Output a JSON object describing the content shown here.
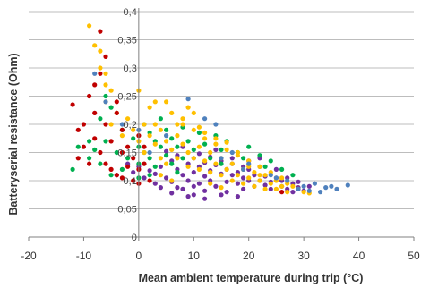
{
  "chart_data": {
    "type": "scatter",
    "xlabel": "Mean ambient temperature during trip (°C)",
    "ylabel": "Batteryserial resistance (Ohm)",
    "xlim": [
      -20,
      50
    ],
    "ylim": [
      0,
      0.4
    ],
    "x_ticks": [
      "-20",
      "-10",
      "0",
      "10",
      "20",
      "30",
      "40",
      "50"
    ],
    "y_ticks": [
      "0",
      "0,05",
      "0,1",
      "0,15",
      "0,2",
      "0,25",
      "0,3",
      "0,35",
      "0,4"
    ],
    "grid": "horizontal",
    "legend": "none",
    "series": [
      {
        "color": "#7030A0",
        "points": [
          [
            2,
            0.118
          ],
          [
            3,
            0.112
          ],
          [
            4,
            0.125
          ],
          [
            5,
            0.105
          ],
          [
            6,
            0.135
          ],
          [
            6,
            0.098
          ],
          [
            7,
            0.12
          ],
          [
            7,
            0.145
          ],
          [
            8,
            0.11
          ],
          [
            8,
            0.085
          ],
          [
            9,
            0.13
          ],
          [
            9,
            0.1
          ],
          [
            10,
            0.115
          ],
          [
            10,
            0.09
          ],
          [
            10,
            0.14
          ],
          [
            11,
            0.125
          ],
          [
            11,
            0.095
          ],
          [
            12,
            0.108
          ],
          [
            12,
            0.132
          ],
          [
            12,
            0.082
          ],
          [
            13,
            0.118
          ],
          [
            13,
            0.1
          ],
          [
            14,
            0.128
          ],
          [
            14,
            0.09
          ],
          [
            15,
            0.112
          ],
          [
            15,
            0.135
          ],
          [
            16,
            0.098
          ],
          [
            16,
            0.12
          ],
          [
            16,
            0.08
          ],
          [
            17,
            0.11
          ],
          [
            17,
            0.13
          ],
          [
            18,
            0.095
          ],
          [
            18,
            0.115
          ],
          [
            19,
            0.105
          ],
          [
            19,
            0.085
          ],
          [
            20,
            0.12
          ],
          [
            20,
            0.1
          ],
          [
            21,
            0.11
          ],
          [
            21,
            0.09
          ],
          [
            22,
            0.1
          ],
          [
            22,
            0.125
          ],
          [
            23,
            0.092
          ],
          [
            23,
            0.108
          ],
          [
            24,
            0.098
          ],
          [
            24,
            0.085
          ],
          [
            25,
            0.105
          ],
          [
            26,
            0.09
          ],
          [
            26,
            0.1
          ],
          [
            27,
            0.085
          ],
          [
            28,
            0.095
          ],
          [
            28,
            0.08
          ],
          [
            29,
            0.088
          ],
          [
            30,
            0.082
          ],
          [
            5,
            0.152
          ],
          [
            8,
            0.16
          ],
          [
            11,
            0.148
          ],
          [
            14,
            0.155
          ],
          [
            17,
            0.14
          ],
          [
            20,
            0.135
          ],
          [
            3,
            0.095
          ],
          [
            6,
            0.078
          ],
          [
            9,
            0.072
          ],
          [
            12,
            0.068
          ],
          [
            15,
            0.075
          ],
          [
            18,
            0.072
          ],
          [
            -2,
            0.13
          ],
          [
            -1,
            0.115
          ],
          [
            0,
            0.125
          ],
          [
            1,
            0.105
          ],
          [
            -4,
            0.11
          ],
          [
            25,
            0.12
          ],
          [
            22,
            0.14
          ],
          [
            19,
            0.125
          ],
          [
            13,
            0.142
          ],
          [
            7,
            0.088
          ],
          [
            4,
            0.088
          ],
          [
            10,
            0.075
          ],
          [
            27,
            0.105
          ],
          [
            29,
            0.098
          ],
          [
            31,
            0.09
          ]
        ]
      },
      {
        "color": "#00B050",
        "points": [
          [
            -12,
            0.12
          ],
          [
            -11,
            0.16
          ],
          [
            -9,
            0.14
          ],
          [
            -8,
            0.155
          ],
          [
            -7,
            0.21
          ],
          [
            -7,
            0.13
          ],
          [
            -6,
            0.17
          ],
          [
            -5,
            0.23
          ],
          [
            -4,
            0.15
          ],
          [
            -3,
            0.19
          ],
          [
            -2,
            0.14
          ],
          [
            -1,
            0.175
          ],
          [
            0,
            0.16
          ],
          [
            0,
            0.13
          ],
          [
            1,
            0.2
          ],
          [
            1,
            0.15
          ],
          [
            2,
            0.185
          ],
          [
            2,
            0.14
          ],
          [
            3,
            0.17
          ],
          [
            3,
            0.125
          ],
          [
            4,
            0.21
          ],
          [
            4,
            0.16
          ],
          [
            5,
            0.145
          ],
          [
            5,
            0.19
          ],
          [
            6,
            0.175
          ],
          [
            6,
            0.13
          ],
          [
            7,
            0.16
          ],
          [
            8,
            0.195
          ],
          [
            8,
            0.14
          ],
          [
            9,
            0.17
          ],
          [
            10,
            0.155
          ],
          [
            11,
            0.185
          ],
          [
            12,
            0.165
          ],
          [
            13,
            0.14
          ],
          [
            14,
            0.18
          ],
          [
            15,
            0.155
          ],
          [
            16,
            0.17
          ],
          [
            18,
            0.15
          ],
          [
            20,
            0.16
          ],
          [
            22,
            0.145
          ],
          [
            24,
            0.135
          ],
          [
            26,
            0.12
          ],
          [
            28,
            0.11
          ],
          [
            -5,
            0.11
          ],
          [
            -3,
            0.12
          ],
          [
            0,
            0.105
          ],
          [
            2,
            0.11
          ],
          [
            7,
            0.115
          ],
          [
            -9,
            0.17
          ],
          [
            -6,
            0.25
          ],
          [
            15,
            0.13
          ],
          [
            19,
            0.14
          ],
          [
            23,
            0.125
          ]
        ]
      },
      {
        "color": "#FFC000",
        "points": [
          [
            -9,
            0.375
          ],
          [
            -8,
            0.34
          ],
          [
            -7,
            0.33
          ],
          [
            -7,
            0.3
          ],
          [
            -6,
            0.27
          ],
          [
            -6,
            0.24
          ],
          [
            -5,
            0.2
          ],
          [
            -4,
            0.22
          ],
          [
            -3,
            0.18
          ],
          [
            -2,
            0.21
          ],
          [
            -1,
            0.19
          ],
          [
            0,
            0.26
          ],
          [
            0,
            0.17
          ],
          [
            1,
            0.2
          ],
          [
            1,
            0.15
          ],
          [
            2,
            0.23
          ],
          [
            2,
            0.18
          ],
          [
            3,
            0.165
          ],
          [
            3,
            0.2
          ],
          [
            4,
            0.14
          ],
          [
            4,
            0.19
          ],
          [
            5,
            0.17
          ],
          [
            5,
            0.13
          ],
          [
            6,
            0.22
          ],
          [
            6,
            0.155
          ],
          [
            7,
            0.18
          ],
          [
            7,
            0.14
          ],
          [
            8,
            0.165
          ],
          [
            8,
            0.2
          ],
          [
            9,
            0.15
          ],
          [
            9,
            0.125
          ],
          [
            10,
            0.19
          ],
          [
            10,
            0.14
          ],
          [
            11,
            0.16
          ],
          [
            11,
            0.12
          ],
          [
            12,
            0.175
          ],
          [
            12,
            0.135
          ],
          [
            13,
            0.15
          ],
          [
            13,
            0.115
          ],
          [
            14,
            0.165
          ],
          [
            14,
            0.13
          ],
          [
            15,
            0.14
          ],
          [
            15,
            0.11
          ],
          [
            16,
            0.155
          ],
          [
            16,
            0.12
          ],
          [
            17,
            0.13
          ],
          [
            17,
            0.1
          ],
          [
            18,
            0.145
          ],
          [
            18,
            0.11
          ],
          [
            19,
            0.12
          ],
          [
            19,
            0.095
          ],
          [
            20,
            0.135
          ],
          [
            20,
            0.105
          ],
          [
            21,
            0.115
          ],
          [
            21,
            0.09
          ],
          [
            22,
            0.125
          ],
          [
            22,
            0.1
          ],
          [
            23,
            0.11
          ],
          [
            23,
            0.085
          ],
          [
            24,
            0.115
          ],
          [
            24,
            0.095
          ],
          [
            25,
            0.1
          ],
          [
            25,
            0.085
          ],
          [
            26,
            0.105
          ],
          [
            26,
            0.09
          ],
          [
            27,
            0.095
          ],
          [
            27,
            0.08
          ],
          [
            28,
            0.09
          ],
          [
            29,
            0.085
          ],
          [
            30,
            0.08
          ],
          [
            31,
            0.078
          ],
          [
            8,
            0.21
          ],
          [
            10,
            0.22
          ],
          [
            5,
            0.24
          ],
          [
            3,
            0.24
          ],
          [
            -5,
            0.26
          ],
          [
            -6,
            0.29
          ],
          [
            12,
            0.185
          ],
          [
            14,
            0.175
          ],
          [
            16,
            0.168
          ],
          [
            18,
            0.15
          ],
          [
            20,
            0.125
          ],
          [
            22,
            0.11
          ],
          [
            7,
            0.2
          ],
          [
            11,
            0.195
          ],
          [
            9,
            0.23
          ],
          [
            6,
            0.1
          ],
          [
            4,
            0.11
          ],
          [
            13,
            0.095
          ],
          [
            15,
            0.088
          ]
        ]
      },
      {
        "color": "#C00000",
        "points": [
          [
            -12,
            0.235
          ],
          [
            -11,
            0.19
          ],
          [
            -10,
            0.16
          ],
          [
            -10,
            0.2
          ],
          [
            -9,
            0.25
          ],
          [
            -9,
            0.13
          ],
          [
            -8,
            0.175
          ],
          [
            -8,
            0.22
          ],
          [
            -7,
            0.365
          ],
          [
            -7,
            0.29
          ],
          [
            -7,
            0.15
          ],
          [
            -6,
            0.2
          ],
          [
            -6,
            0.13
          ],
          [
            -5,
            0.17
          ],
          [
            -5,
            0.12
          ],
          [
            -4,
            0.22
          ],
          [
            -4,
            0.11
          ],
          [
            -3,
            0.15
          ],
          [
            -3,
            0.19
          ],
          [
            -2,
            0.125
          ],
          [
            -2,
            0.16
          ],
          [
            -1,
            0.14
          ],
          [
            -1,
            0.1
          ],
          [
            0,
            0.18
          ],
          [
            0,
            0.12
          ],
          [
            1,
            0.13
          ],
          [
            2,
            0.1
          ],
          [
            -6,
            0.32
          ],
          [
            -8,
            0.27
          ],
          [
            -4,
            0.24
          ],
          [
            -11,
            0.14
          ],
          [
            -3,
            0.105
          ],
          [
            0,
            0.095
          ],
          [
            1,
            0.16
          ],
          [
            26,
            0.08
          ]
        ]
      },
      {
        "color": "#4F81BD",
        "points": [
          [
            -8,
            0.29
          ],
          [
            -6,
            0.24
          ],
          [
            -3,
            0.2
          ],
          [
            0,
            0.19
          ],
          [
            2,
            0.15
          ],
          [
            5,
            0.18
          ],
          [
            9,
            0.245
          ],
          [
            12,
            0.21
          ],
          [
            14,
            0.2
          ],
          [
            17,
            0.15
          ],
          [
            20,
            0.13
          ],
          [
            24,
            0.11
          ],
          [
            27,
            0.1
          ],
          [
            30,
            0.09
          ],
          [
            32,
            0.095
          ],
          [
            34,
            0.088
          ],
          [
            35,
            0.09
          ],
          [
            36,
            0.085
          ],
          [
            38,
            0.092
          ],
          [
            33,
            0.08
          ],
          [
            25,
            0.105
          ],
          [
            15,
            0.14
          ],
          [
            19,
            0.12
          ],
          [
            29,
            0.085
          ],
          [
            31,
            0.082
          ]
        ]
      }
    ]
  }
}
